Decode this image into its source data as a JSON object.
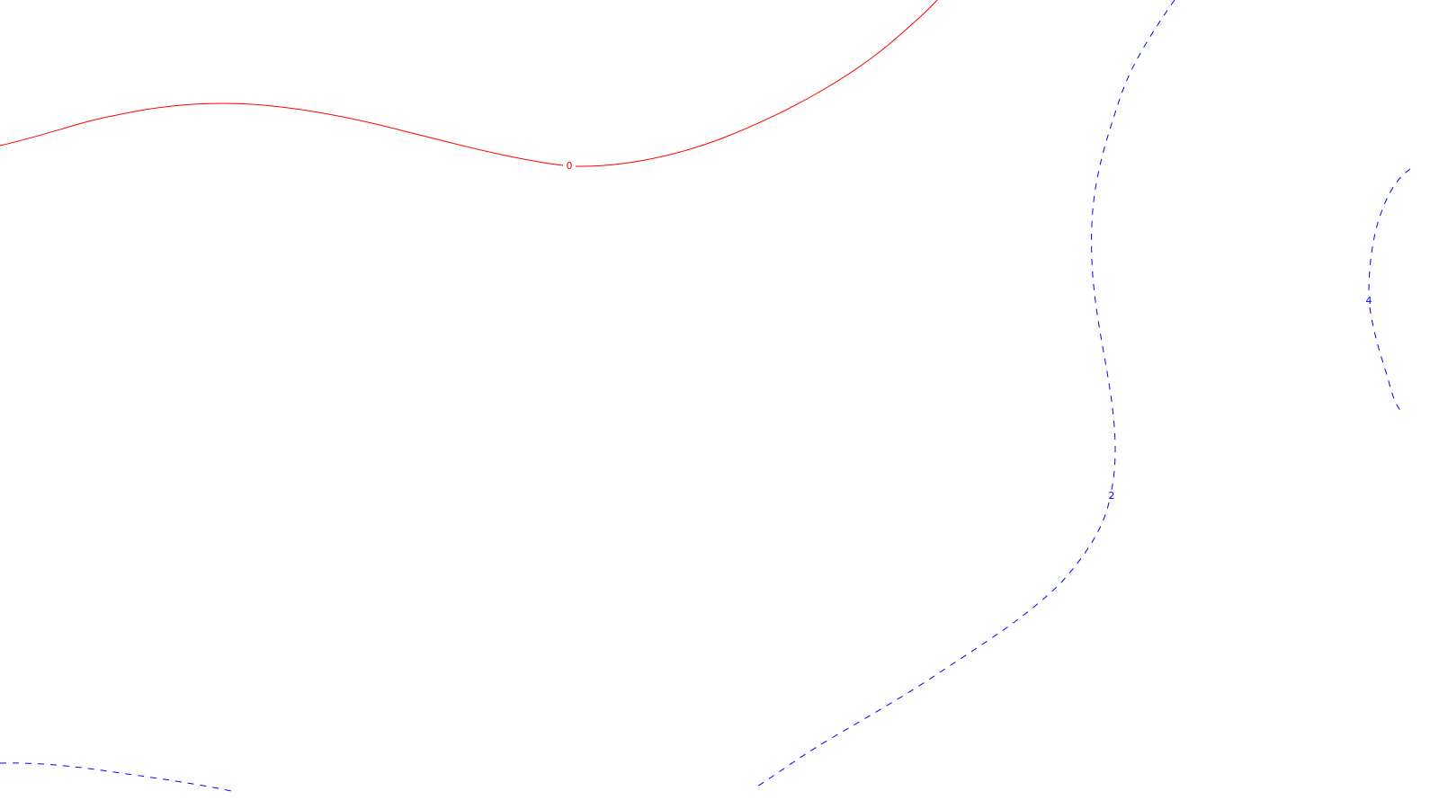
{
  "contours": [
    {
      "label": "0",
      "color": "#ff0000",
      "style": "solid"
    },
    {
      "label": "2",
      "color": "#0000ff",
      "style": "dashed"
    },
    {
      "label": "4",
      "color": "#0000ff",
      "style": "dashed"
    }
  ]
}
